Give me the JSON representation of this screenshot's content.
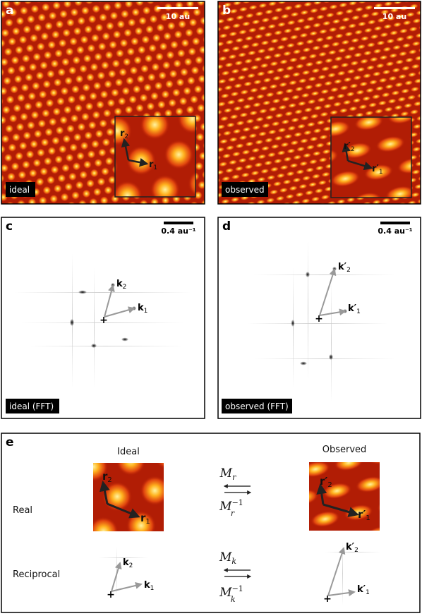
{
  "panels": {
    "a": {
      "letter": "a",
      "scalebar": "10 au",
      "tag": "ideal",
      "v1": "r",
      "v1_sub": "1",
      "v2": "r",
      "v2_sub": "2"
    },
    "b": {
      "letter": "b",
      "scalebar": "10 au",
      "tag": "observed",
      "v1": "r′",
      "v1_sub": "1",
      "v2": "r′",
      "v2_sub": "2"
    },
    "c": {
      "letter": "c",
      "scalebar": "0.4 au⁻¹",
      "tag": "ideal (FFT)",
      "v1": "k",
      "v1_sub": "1",
      "v2": "k",
      "v2_sub": "2"
    },
    "d": {
      "letter": "d",
      "scalebar": "0.4 au⁻¹",
      "tag": "observed (FFT)",
      "v1": "k′",
      "v1_sub": "1",
      "v2": "k′",
      "v2_sub": "2"
    },
    "e": {
      "letter": "e",
      "col_ideal": "Ideal",
      "col_observed": "Observed",
      "row_real": "Real",
      "row_reciprocal": "Reciprocal",
      "mr": "M",
      "mr_sub": "r",
      "mr_inv": "M",
      "mr_inv_sub": "r",
      "mk": "M",
      "mk_sub": "k",
      "mk_inv": "M",
      "mk_inv_sub": "k",
      "inv_sup": "−1"
    }
  },
  "colors": {
    "lattice_bg": "#b11d05",
    "lattice_mid": "#e14b10",
    "lattice_peak": "#ffe15a",
    "vector_dark": "#222222",
    "vector_grey": "#999999",
    "tag_bg": "#000000",
    "tag_text": "#ffffff"
  }
}
